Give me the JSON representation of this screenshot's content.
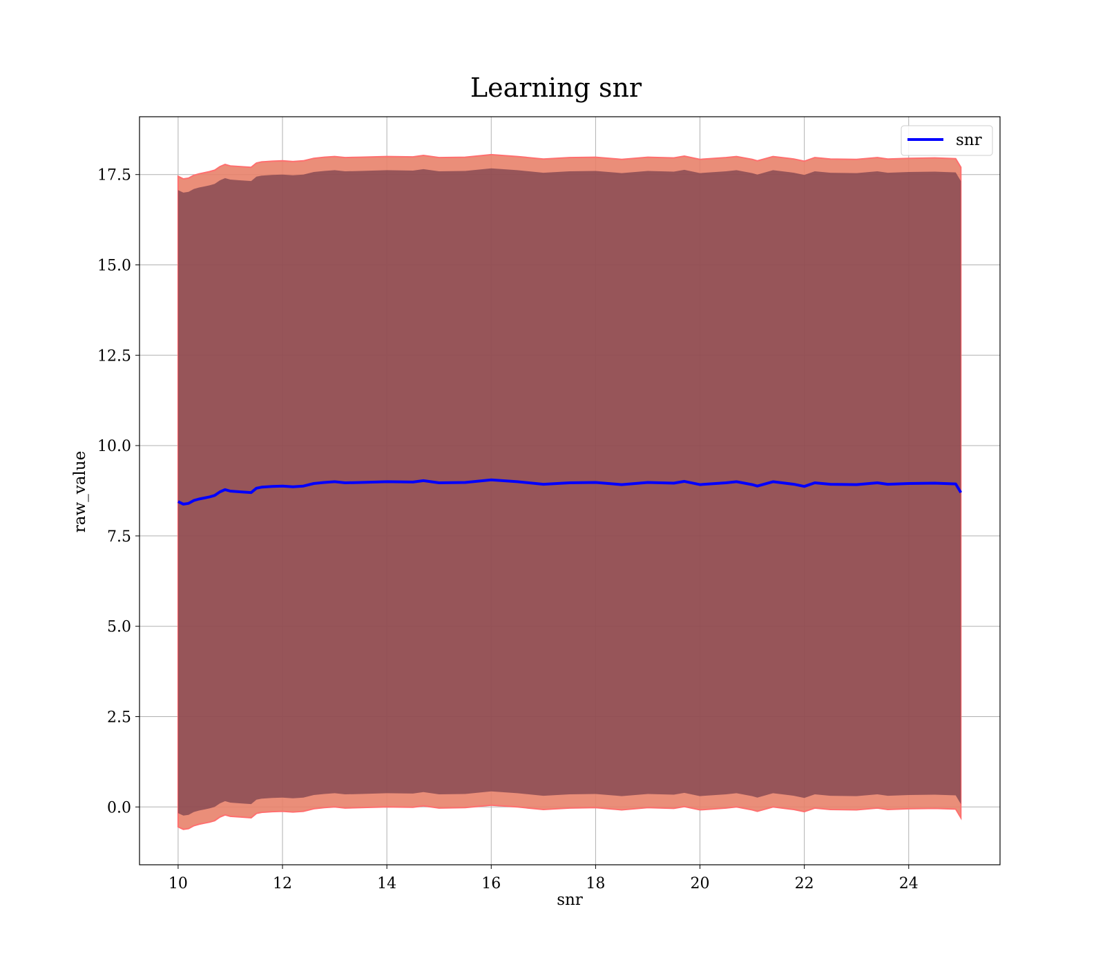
{
  "chart_data": {
    "type": "line",
    "title": "Learning snr",
    "xlabel": "snr",
    "ylabel": "raw_value",
    "xlim": [
      9.26,
      25.75
    ],
    "ylim": [
      -1.6,
      19.1
    ],
    "x_ticks": [
      10,
      12,
      14,
      16,
      18,
      20,
      22,
      24
    ],
    "x_tick_labels": [
      "10",
      "12",
      "14",
      "16",
      "18",
      "20",
      "22",
      "24"
    ],
    "y_ticks": [
      0.0,
      2.5,
      5.0,
      7.5,
      10.0,
      12.5,
      15.0,
      17.5
    ],
    "y_tick_labels": [
      "0.0",
      "2.5",
      "5.0",
      "7.5",
      "10.0",
      "12.5",
      "15.0",
      "17.5"
    ],
    "grid": true,
    "legend_position": "top-right",
    "colors": {
      "line": "#0000ff",
      "band_outer": "#e8826a",
      "band_outer_edge": "#ff6f6f",
      "band_inner": "#5f2f45"
    },
    "series": [
      {
        "name": "snr",
        "x": [
          10.0,
          10.1,
          10.2,
          10.3,
          10.4,
          10.5,
          10.6,
          10.7,
          10.8,
          10.9,
          11.0,
          11.2,
          11.4,
          11.5,
          11.6,
          11.8,
          12.0,
          12.2,
          12.4,
          12.6,
          12.8,
          13.0,
          13.2,
          13.5,
          14.0,
          14.5,
          14.7,
          15.0,
          15.5,
          16.0,
          16.5,
          17.0,
          17.5,
          18.0,
          18.5,
          19.0,
          19.5,
          19.7,
          20.0,
          20.5,
          20.7,
          21.0,
          21.1,
          21.4,
          21.8,
          22.0,
          22.2,
          22.5,
          23.0,
          23.4,
          23.6,
          24.0,
          24.5,
          24.9,
          25.0
        ],
        "values": [
          8.45,
          8.38,
          8.4,
          8.48,
          8.52,
          8.55,
          8.58,
          8.62,
          8.72,
          8.78,
          8.74,
          8.72,
          8.7,
          8.82,
          8.85,
          8.87,
          8.88,
          8.86,
          8.88,
          8.95,
          8.98,
          9.0,
          8.97,
          8.98,
          9.0,
          8.99,
          9.03,
          8.97,
          8.98,
          9.05,
          9.0,
          8.93,
          8.97,
          8.98,
          8.92,
          8.98,
          8.96,
          9.01,
          8.92,
          8.97,
          9.0,
          8.92,
          8.88,
          9.0,
          8.93,
          8.87,
          8.97,
          8.93,
          8.92,
          8.97,
          8.93,
          8.95,
          8.96,
          8.94,
          8.7
        ],
        "std_outer": 9.0,
        "std_inner": 8.62
      }
    ]
  }
}
